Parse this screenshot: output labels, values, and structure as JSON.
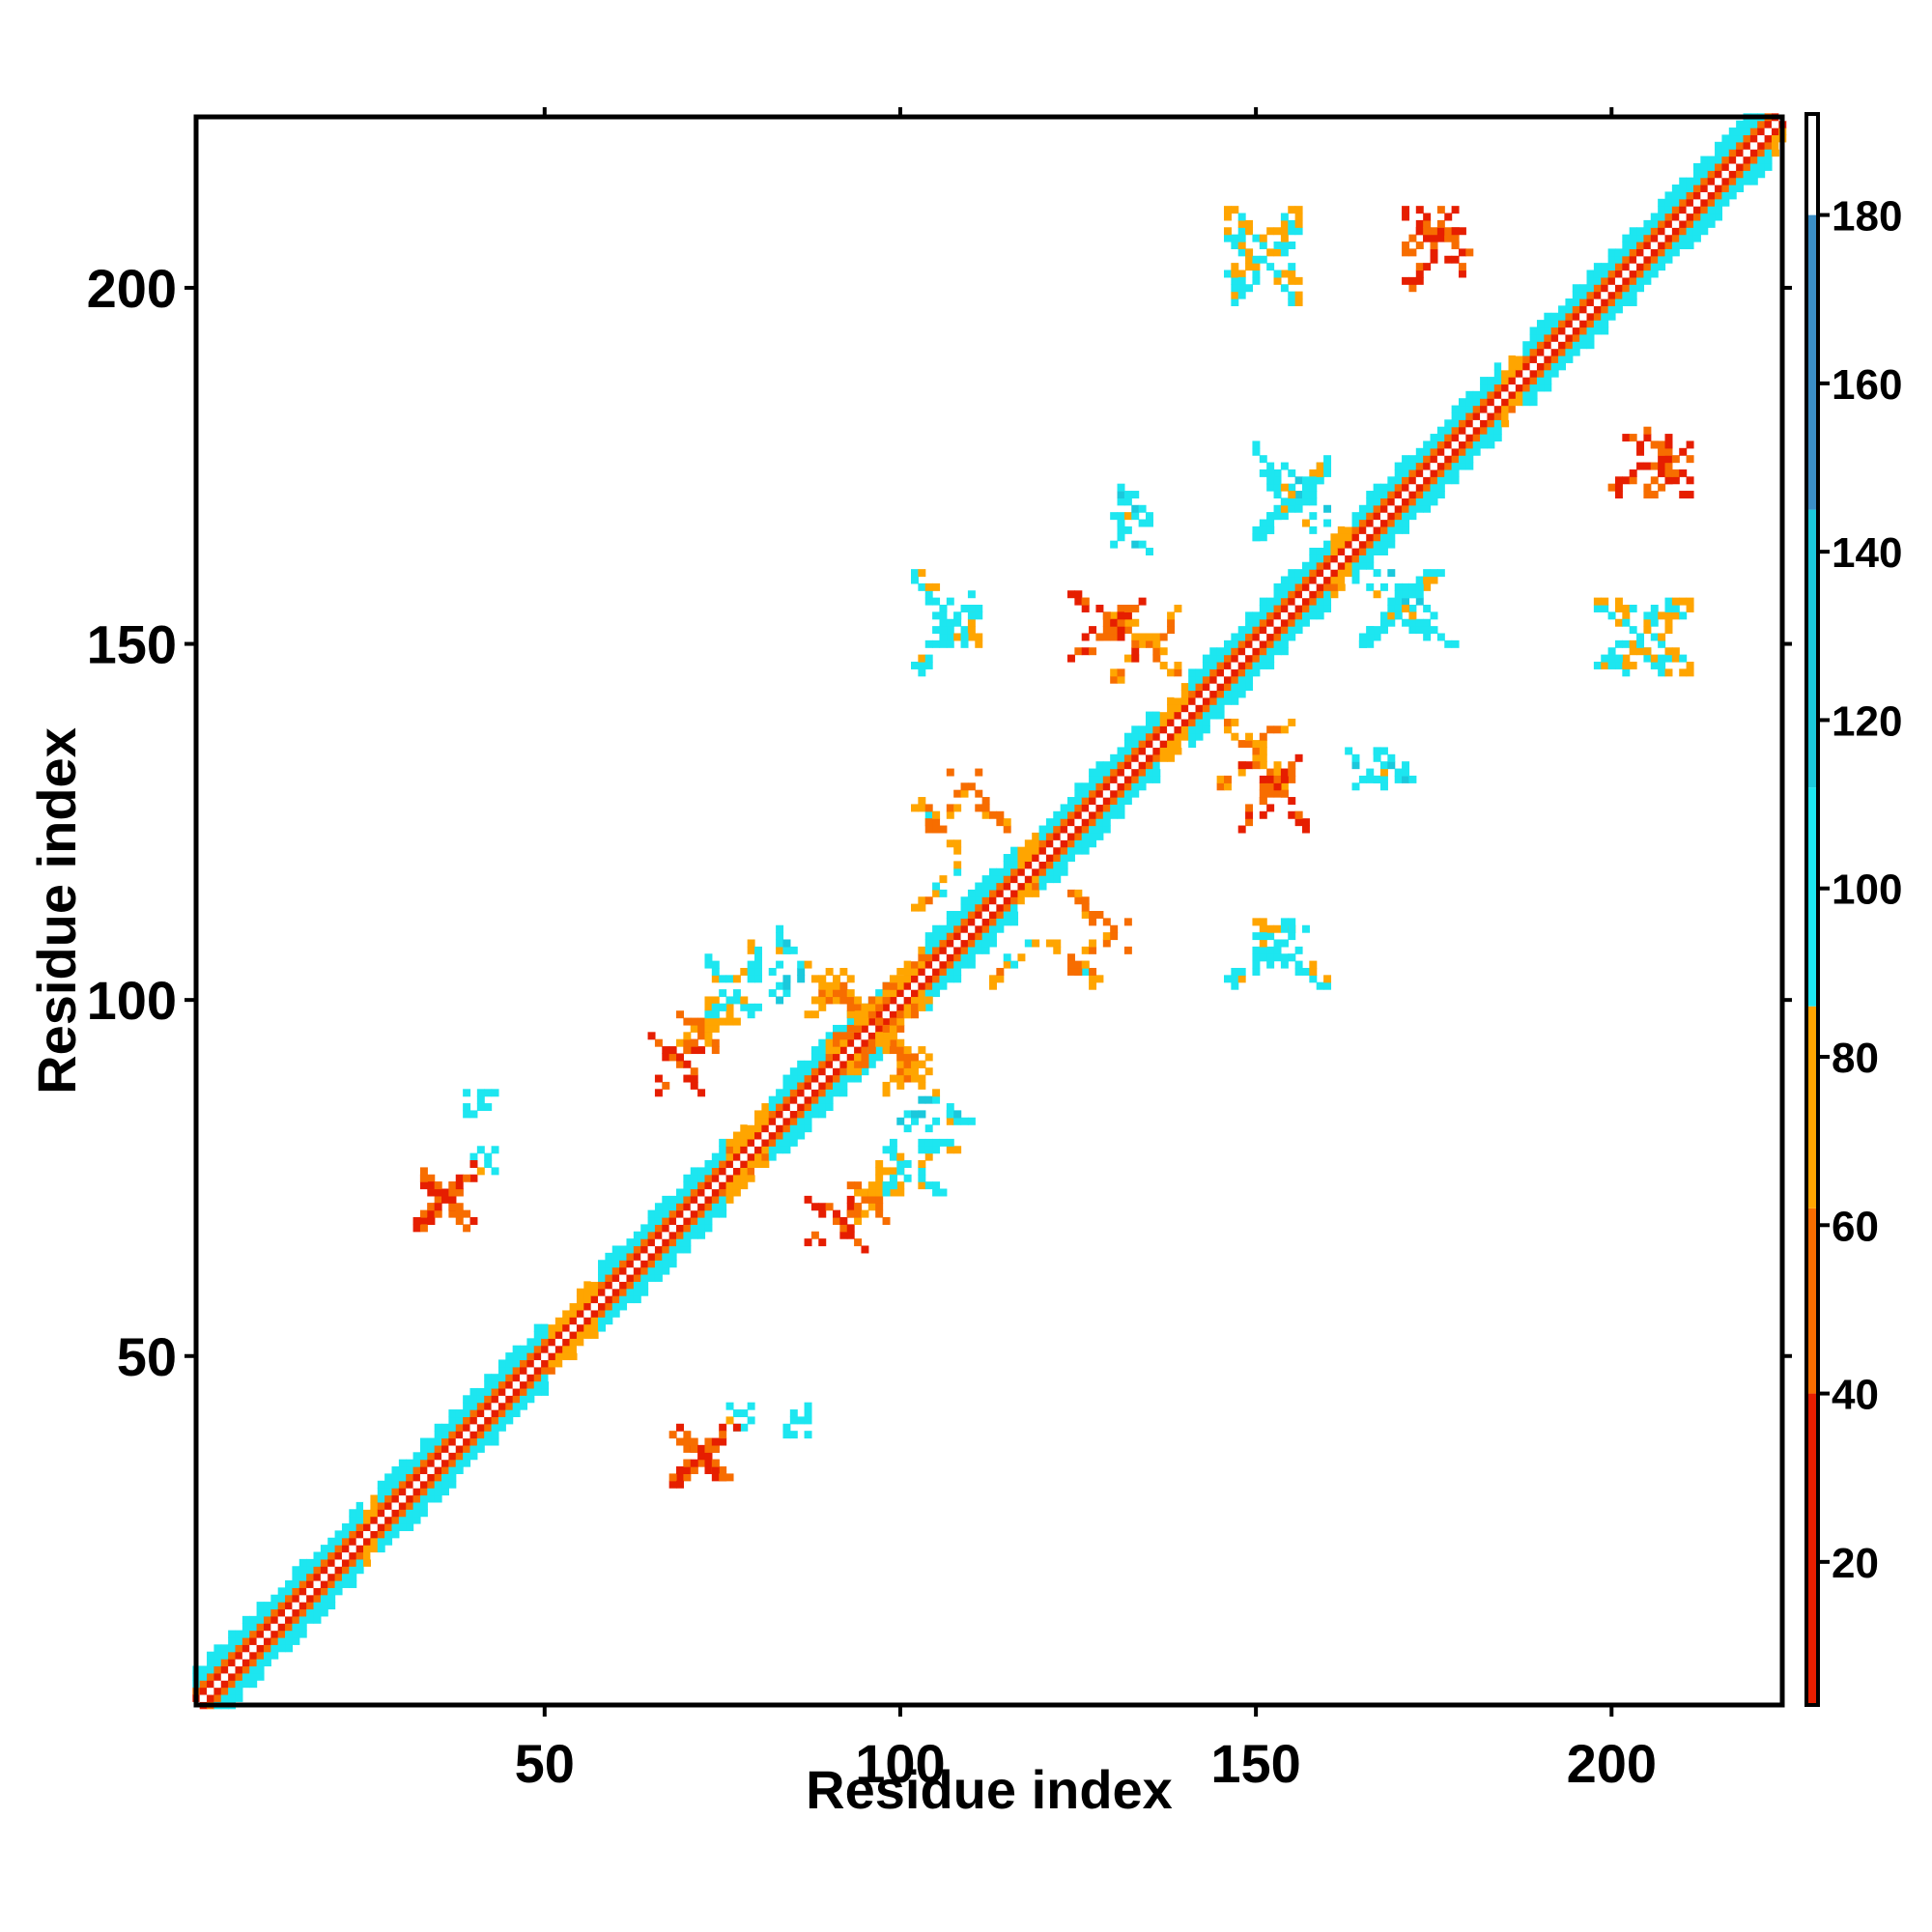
{
  "chart_data": {
    "type": "heatmap",
    "title": "",
    "xlabel": "Residue index",
    "ylabel": "Residue index",
    "xlim": [
      1,
      224
    ],
    "ylim": [
      1,
      224
    ],
    "x_ticks": [
      50,
      100,
      150,
      200
    ],
    "y_ticks": [
      50,
      100,
      150,
      200
    ],
    "x_tick_labels": [
      "50",
      "100",
      "150",
      "200"
    ],
    "y_tick_labels": [
      "50",
      "100",
      "150",
      "200"
    ],
    "colorbar": {
      "range": [
        3,
        192
      ],
      "ticks": [
        20,
        40,
        60,
        80,
        100,
        120,
        140,
        160,
        180
      ],
      "tick_labels": [
        "20",
        "40",
        "60",
        "80",
        "100",
        "120",
        "140",
        "160",
        "180"
      ],
      "segments": [
        {
          "from": 3,
          "to": 40,
          "color": "#e61e00"
        },
        {
          "from": 40,
          "to": 62,
          "color": "#f76d00"
        },
        {
          "from": 62,
          "to": 86,
          "color": "#ffa500"
        },
        {
          "from": 86,
          "to": 112,
          "color": "#1de6f0"
        },
        {
          "from": 112,
          "to": 145,
          "color": "#1bc8dc"
        },
        {
          "from": 145,
          "to": 180,
          "color": "#3b8ec6"
        },
        {
          "from": 180,
          "to": 192,
          "color": "#ffffff"
        }
      ]
    },
    "grid": false,
    "diagonal_band": {
      "width": 5,
      "helix_segments": [
        [
          1,
          24
        ],
        [
          27,
          50
        ],
        [
          58,
          75
        ],
        [
          82,
          98
        ],
        [
          104,
          116
        ],
        [
          120,
          136
        ],
        [
          141,
          160
        ],
        [
          164,
          184
        ],
        [
          188,
          222
        ]
      ]
    },
    "contacts": [
      {
        "x": [
          65,
          72
        ],
        "y": [
          87,
          95
        ],
        "value": 30
      },
      {
        "x": [
          69,
          74
        ],
        "y": [
          93,
          98
        ],
        "value": 55
      },
      {
        "x": [
          73,
          77
        ],
        "y": [
          96,
          100
        ],
        "value": 75
      },
      {
        "x": [
          79,
          84
        ],
        "y": [
          103,
          108
        ],
        "value": 95
      },
      {
        "x": [
          82,
          86
        ],
        "y": [
          100,
          110
        ],
        "value": 110
      },
      {
        "x": [
          87,
          93
        ],
        "y": [
          98,
          105
        ],
        "value": 70
      },
      {
        "x": [
          33,
          42
        ],
        "y": [
          69,
          75
        ],
        "value": 35
      },
      {
        "x": [
          40,
          45
        ],
        "y": [
          76,
          79
        ],
        "value": 100
      },
      {
        "x": [
          93,
          105
        ],
        "y": [
          90,
          100
        ],
        "value": 60
      },
      {
        "x": [
          98,
          112
        ],
        "y": [
          73,
          80
        ],
        "value": 100
      },
      {
        "x": [
          68,
          77
        ],
        "y": [
          32,
          40
        ],
        "value": 40
      },
      {
        "x": [
          84,
          87
        ],
        "y": [
          39,
          43
        ],
        "value": 100
      },
      {
        "x": [
          102,
          111
        ],
        "y": [
          146,
          160
        ],
        "value": 90
      },
      {
        "x": [
          124,
          129
        ],
        "y": [
          148,
          157
        ],
        "value": 40
      },
      {
        "x": [
          130,
          141
        ],
        "y": [
          145,
          155
        ],
        "value": 70
      },
      {
        "x": [
          130,
          135
        ],
        "y": [
          163,
          167
        ],
        "value": 100
      },
      {
        "x": [
          150,
          160
        ],
        "y": [
          104,
          110
        ],
        "value": 95
      },
      {
        "x": [
          148,
          156
        ],
        "y": [
          126,
          134
        ],
        "value": 40
      },
      {
        "x": [
          167,
          172
        ],
        "y": [
          130,
          135
        ],
        "value": 100
      },
      {
        "x": [
          146,
          158
        ],
        "y": [
          201,
          211
        ],
        "value": 80
      },
      {
        "x": [
          171,
          179
        ],
        "y": [
          200,
          211
        ],
        "value": 35
      },
      {
        "x": [
          198,
          209
        ],
        "y": [
          146,
          156
        ],
        "value": 90
      },
      {
        "x": [
          205,
          211
        ],
        "y": [
          171,
          180
        ],
        "value": 45
      },
      {
        "x": [
          102,
          108
        ],
        "y": [
          112,
          128
        ],
        "value": 75
      },
      {
        "x": [
          124,
          132
        ],
        "y": [
          104,
          115
        ],
        "value": 60
      },
      {
        "x": [
          150,
          160
        ],
        "y": [
          165,
          178
        ],
        "value": 100
      },
      {
        "x": [
          165,
          180
        ],
        "y": [
          150,
          160
        ],
        "value": 95
      }
    ]
  }
}
